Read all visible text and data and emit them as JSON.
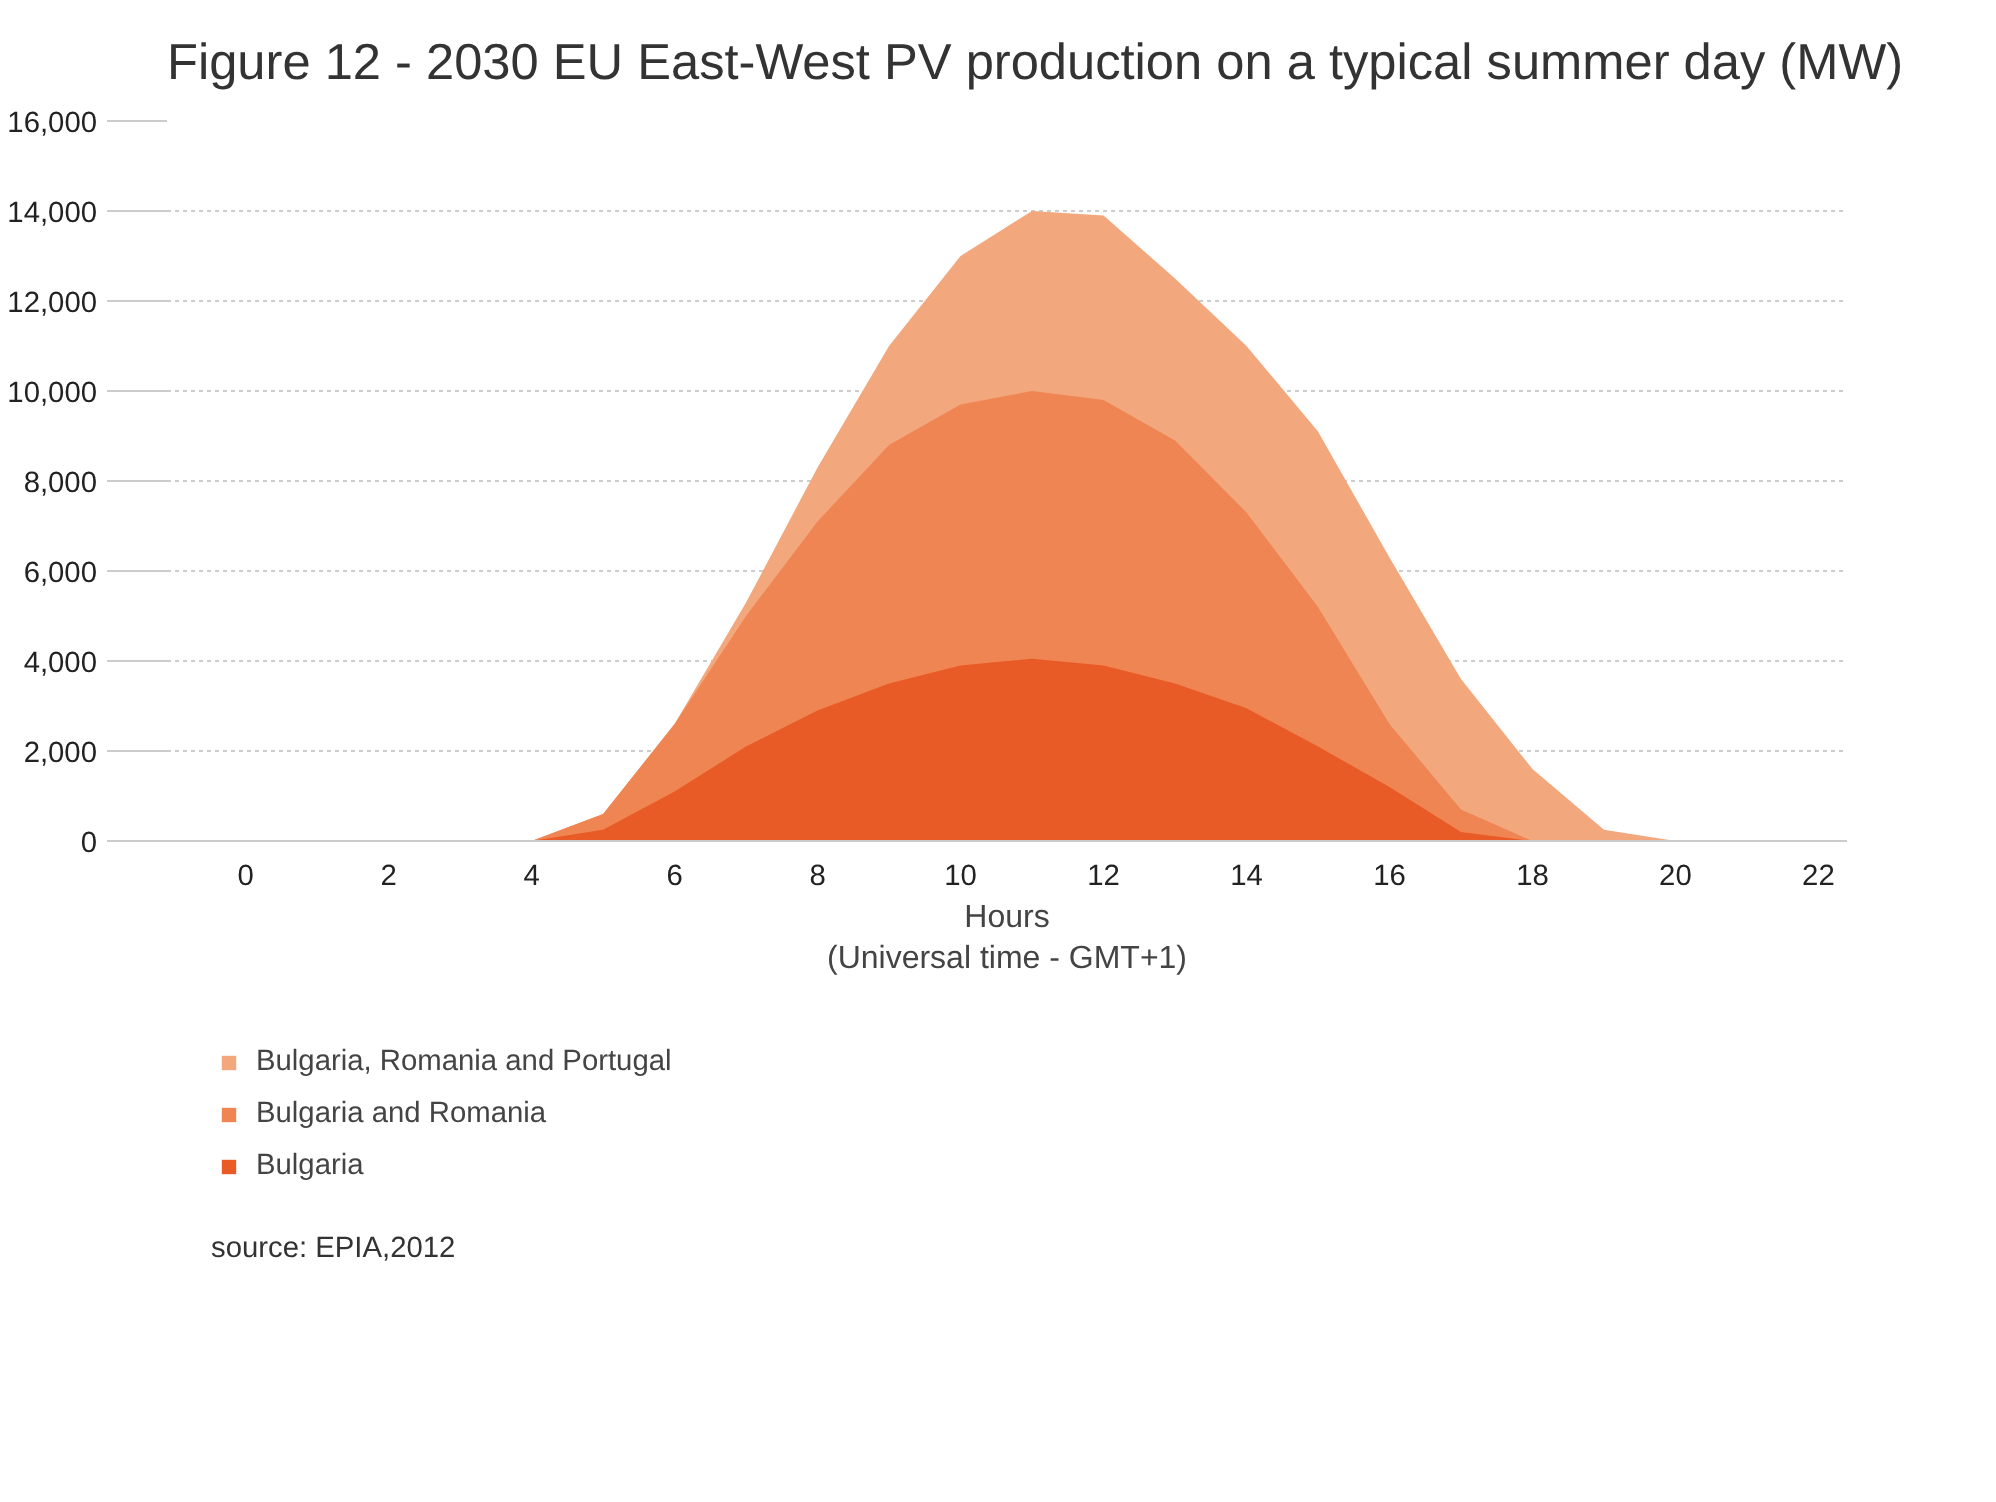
{
  "chart_data": {
    "type": "area",
    "title": "Figure 12 - 2030 EU East-West PV production on a typical summer day (MW)",
    "xlabel": "Hours\n(Universal time - GMT+1)",
    "x": [
      0,
      1,
      2,
      3,
      4,
      5,
      6,
      7,
      8,
      9,
      10,
      11,
      12,
      13,
      14,
      15,
      16,
      17,
      18,
      19,
      20,
      21,
      22
    ],
    "series": [
      {
        "name": "Bulgaria, Romania and Portugal",
        "color": "#f2a77d",
        "values": [
          0,
          0,
          0,
          0,
          0,
          600,
          2600,
          5300,
          8300,
          11000,
          13000,
          14000,
          13900,
          12500,
          11000,
          9100,
          6300,
          3600,
          1600,
          250,
          0,
          0,
          0
        ]
      },
      {
        "name": "Bulgaria and Romania",
        "color": "#ef8552",
        "values": [
          0,
          0,
          0,
          0,
          0,
          600,
          2600,
          5000,
          7100,
          8800,
          9700,
          10000,
          9800,
          8900,
          7300,
          5200,
          2600,
          700,
          0,
          0,
          0,
          0,
          0
        ]
      },
      {
        "name": "Bulgaria",
        "color": "#e85a26",
        "values": [
          0,
          0,
          0,
          0,
          0,
          250,
          1100,
          2100,
          2900,
          3500,
          3900,
          4050,
          3900,
          3500,
          2950,
          2100,
          1200,
          200,
          0,
          0,
          0,
          0,
          0
        ]
      }
    ],
    "xlim": [
      -1.1,
      22.4
    ],
    "xticks": [
      0,
      2,
      4,
      6,
      8,
      10,
      12,
      14,
      16,
      18,
      20,
      22
    ],
    "ylim": [
      0,
      16000
    ],
    "yticks": [
      {
        "value": 0,
        "label": "0"
      },
      {
        "value": 2000,
        "label": "2,000"
      },
      {
        "value": 4000,
        "label": "4,000"
      },
      {
        "value": 6000,
        "label": "6,000"
      },
      {
        "value": 8000,
        "label": "8,000"
      },
      {
        "value": 10000,
        "label": "10,000"
      },
      {
        "value": 12000,
        "label": "12,000"
      },
      {
        "value": 14000,
        "label": "14,000"
      },
      {
        "value": 16000,
        "label": "16,000"
      }
    ],
    "grid": "y",
    "legend": "bottom",
    "annotations": [
      "source: EPIA,2012"
    ]
  }
}
